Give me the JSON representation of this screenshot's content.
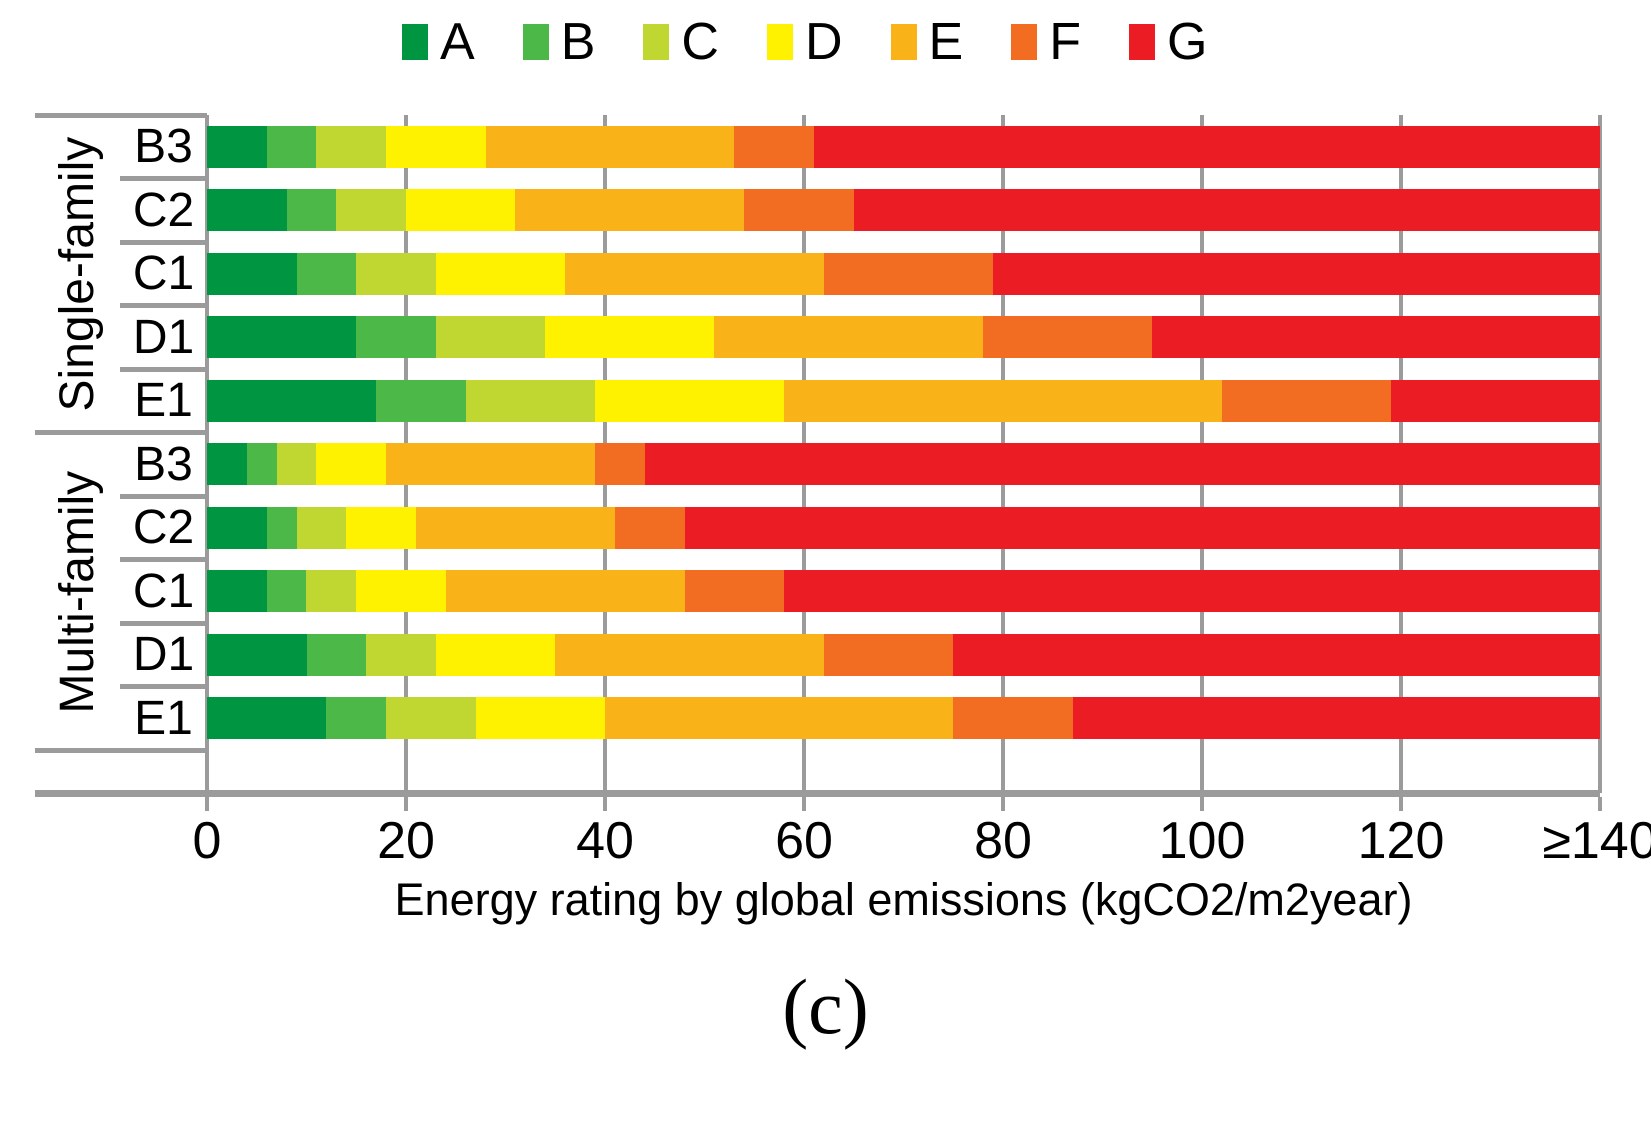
{
  "caption": "(c)",
  "chart_data": {
    "type": "bar",
    "stacked": true,
    "orientation": "horizontal",
    "title": "",
    "xlabel": "Energy rating by global emissions (kgCO2/m2year)",
    "ylabel": "",
    "xlim": [
      0,
      140
    ],
    "x_tick_values": [
      0,
      20,
      40,
      60,
      80,
      100,
      120,
      140
    ],
    "x_tick_labels": [
      "0",
      "20",
      "40",
      "60",
      "80",
      "100",
      "120",
      "≥140"
    ],
    "grid": true,
    "grid_color": "#9b9b9b",
    "legend_position": "top",
    "legend": [
      "A",
      "B",
      "C",
      "D",
      "E",
      "F",
      "G"
    ],
    "colors": [
      "#009540",
      "#4CB848",
      "#BFD730",
      "#FFF200",
      "#F9B218",
      "#F26C21",
      "#EC1C24"
    ],
    "groups": [
      {
        "label": "Single-family",
        "rows": [
          {
            "label": "B3",
            "values": [
              6,
              5,
              7,
              10,
              25,
              8,
              79
            ]
          },
          {
            "label": "C2",
            "values": [
              8,
              5,
              7,
              11,
              23,
              11,
              75
            ]
          },
          {
            "label": "C1",
            "values": [
              9,
              6,
              8,
              13,
              26,
              17,
              61
            ]
          },
          {
            "label": "D1",
            "values": [
              15,
              8,
              11,
              17,
              27,
              17,
              45
            ]
          },
          {
            "label": "E1",
            "values": [
              17,
              9,
              13,
              19,
              44,
              17,
              21
            ]
          }
        ]
      },
      {
        "label": "Multi-family",
        "rows": [
          {
            "label": "B3",
            "values": [
              4,
              3,
              4,
              7,
              21,
              5,
              96
            ]
          },
          {
            "label": "C2",
            "values": [
              6,
              3,
              5,
              7,
              20,
              7,
              92
            ]
          },
          {
            "label": "C1",
            "values": [
              6,
              4,
              5,
              9,
              24,
              10,
              82
            ]
          },
          {
            "label": "D1",
            "values": [
              10,
              6,
              7,
              12,
              27,
              13,
              65
            ]
          },
          {
            "label": "E1",
            "values": [
              12,
              6,
              9,
              13,
              35,
              12,
              53
            ]
          }
        ]
      }
    ]
  }
}
